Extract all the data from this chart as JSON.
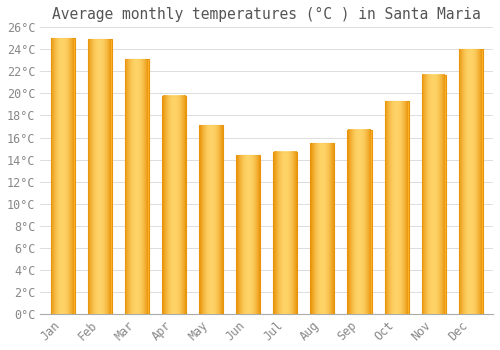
{
  "title": "Average monthly temperatures (°C ) in Santa Maria",
  "months": [
    "Jan",
    "Feb",
    "Mar",
    "Apr",
    "May",
    "Jun",
    "Jul",
    "Aug",
    "Sep",
    "Oct",
    "Nov",
    "Dec"
  ],
  "values": [
    25.0,
    24.9,
    23.1,
    19.8,
    17.1,
    14.4,
    14.7,
    15.5,
    16.7,
    19.3,
    21.7,
    24.0
  ],
  "bar_color_main": "#FDB22A",
  "bar_color_edge": "#E8930A",
  "bar_color_light": "#FFD870",
  "background_color": "#FFFFFF",
  "plot_bg_color": "#FFFFFF",
  "grid_color": "#DDDDDD",
  "ylim": [
    0,
    26
  ],
  "ytick_step": 2,
  "title_fontsize": 10.5,
  "tick_fontsize": 8.5,
  "label_color": "#888888",
  "title_color": "#555555",
  "font_family": "monospace",
  "bar_width": 0.65
}
